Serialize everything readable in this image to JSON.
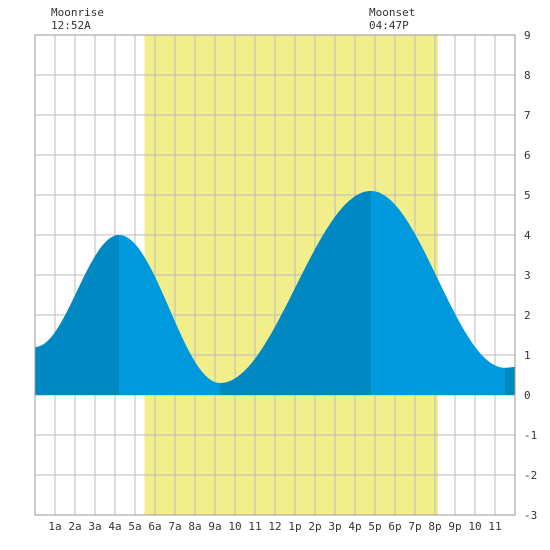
{
  "moonrise": {
    "label": "Moonrise",
    "time": "12:52A",
    "hour": 0.87
  },
  "moonset": {
    "label": "Moonset",
    "time": "04:47P",
    "hour": 16.78
  },
  "colors": {
    "daylight": "#f2ee8c",
    "tide_light": "#0099dd",
    "tide_dark": "#0088c2",
    "grid": "#bbbbbb"
  },
  "chart_data": {
    "type": "area",
    "x_ticks": [
      "1a",
      "2a",
      "3a",
      "4a",
      "5a",
      "6a",
      "7a",
      "8a",
      "9a",
      "10",
      "11",
      "12",
      "1p",
      "2p",
      "3p",
      "4p",
      "5p",
      "6p",
      "7p",
      "8p",
      "9p",
      "10",
      "11"
    ],
    "y_ticks": [
      "9",
      "8",
      "7",
      "6",
      "5",
      "4",
      "3",
      "2",
      "1",
      "0",
      "-1",
      "-2",
      "-3"
    ],
    "xlim": [
      0,
      24
    ],
    "ylim": [
      -3,
      9
    ],
    "daylight": [
      5.47,
      20.15
    ],
    "tide_extremes": [
      {
        "hour": 0.0,
        "height": 1.2
      },
      {
        "hour": 4.2,
        "height": 4.0
      },
      {
        "hour": 9.25,
        "height": 0.3
      },
      {
        "hour": 16.8,
        "height": 5.1
      },
      {
        "hour": 23.5,
        "height": 0.68
      },
      {
        "hour": 24.0,
        "height": 0.7
      }
    ],
    "shade_breaks": [
      4.2,
      9.25,
      16.8,
      23.5
    ]
  }
}
